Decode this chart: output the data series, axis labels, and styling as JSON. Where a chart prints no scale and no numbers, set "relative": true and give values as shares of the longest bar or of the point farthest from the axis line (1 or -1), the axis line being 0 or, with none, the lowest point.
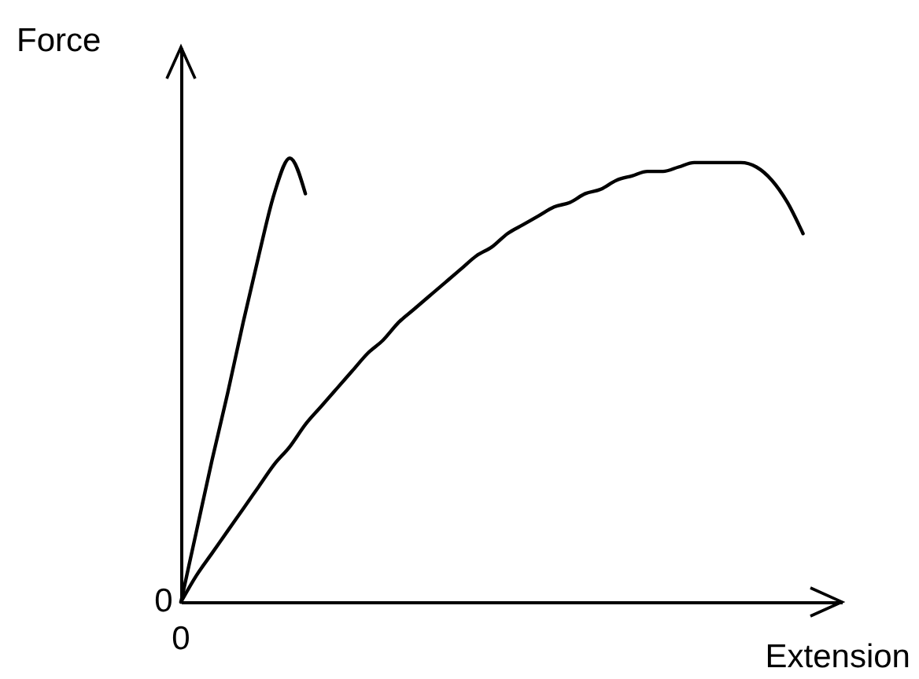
{
  "chart_data": {
    "type": "line",
    "relative": true,
    "xlabel": "Extension",
    "ylabel": "Force",
    "annotations": [
      "0",
      "0"
    ],
    "categories": [
      null,
      null,
      null,
      null,
      null,
      null,
      null,
      null,
      null,
      null,
      null,
      null,
      null,
      null,
      null,
      null,
      null,
      null,
      null,
      null,
      null,
      null,
      null,
      null,
      null,
      null,
      null,
      null,
      null,
      null,
      null,
      null,
      null,
      null,
      null,
      null,
      null,
      null,
      null,
      null,
      null
    ],
    "series": [
      {
        "color": "#000000",
        "values": [
          0,
          0.16,
          0.32,
          0.47,
          0.63,
          0.78,
          0.92,
          1,
          0.92,
          null,
          null,
          null,
          null,
          null,
          null,
          null,
          null,
          null,
          null,
          null,
          null,
          null,
          null,
          null,
          null,
          null,
          null,
          null,
          null,
          null,
          null,
          null,
          null,
          null,
          null,
          null,
          null,
          null,
          null,
          null,
          null
        ]
      },
      {
        "color": "#000000",
        "values": [
          0,
          0.06,
          0.11,
          0.16,
          0.21,
          0.26,
          0.31,
          0.35,
          0.4,
          0.44,
          0.48,
          0.52,
          0.56,
          0.59,
          0.63,
          0.66,
          0.69,
          0.72,
          0.75,
          0.78,
          0.8,
          0.83,
          0.85,
          0.87,
          0.89,
          0.9,
          0.92,
          0.93,
          0.95,
          0.96,
          0.97,
          0.97,
          0.98,
          0.99,
          0.99,
          0.99,
          0.99,
          0.98,
          0.95,
          0.9,
          0.83
        ]
      }
    ],
    "grid": false,
    "marker": "none",
    "line_style": "solid"
  }
}
